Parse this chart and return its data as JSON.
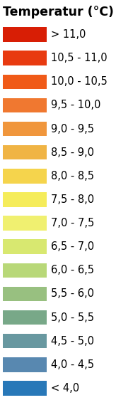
{
  "title": "Temperatur (°C)",
  "labels": [
    "> 11,0",
    "10,5 - 11,0",
    "10,0 - 10,5",
    "9,5 - 10,0",
    "9,0 - 9,5",
    "8,5 - 9,0",
    "8,0 - 8,5",
    "7,5 - 8,0",
    "7,0 - 7,5",
    "6,5 - 7,0",
    "6,0 - 6,5",
    "5,5 - 6,0",
    "5,0 - 5,5",
    "4,5 - 5,0",
    "4,0 - 4,5",
    "< 4,0"
  ],
  "colors": [
    "#d81e05",
    "#e83a10",
    "#f05a18",
    "#f07830",
    "#f0963c",
    "#f0b444",
    "#f5d44c",
    "#f5ec5a",
    "#f0f070",
    "#d8e870",
    "#b8d878",
    "#98c080",
    "#78a888",
    "#6898a0",
    "#5888b0",
    "#2878b8"
  ],
  "background_color": "#ffffff",
  "title_fontsize": 12.5,
  "label_fontsize": 10.5,
  "fig_width": 1.88,
  "fig_height": 5.62,
  "dpi": 100
}
